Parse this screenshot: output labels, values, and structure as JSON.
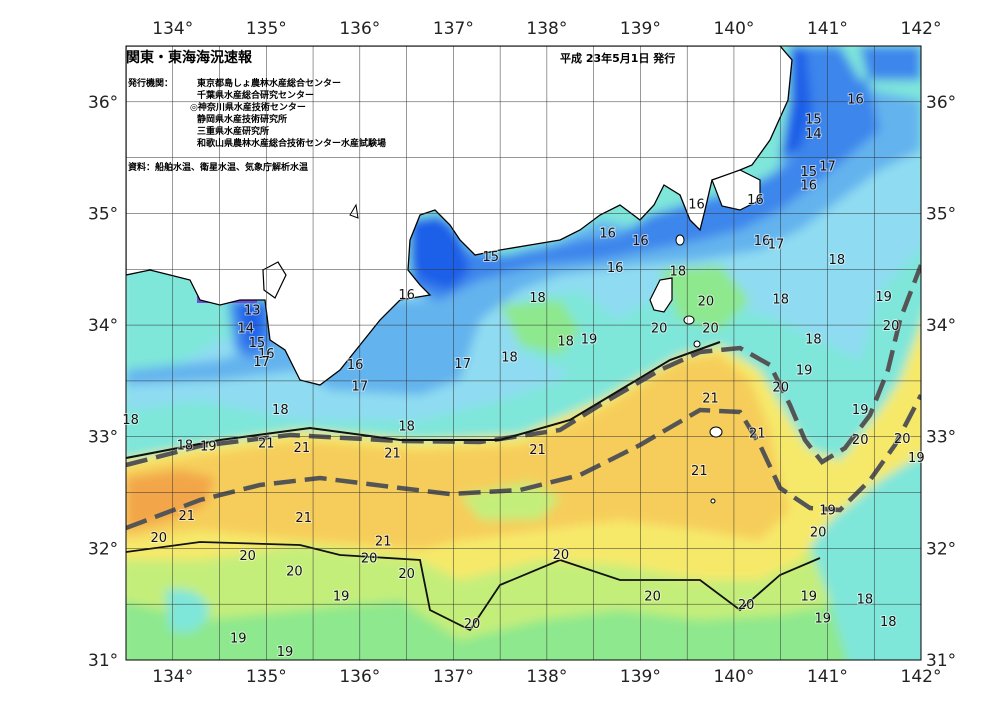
{
  "header": {
    "title": "関東・東海海況速報",
    "date": "平成 23年5月1日 発行"
  },
  "info": {
    "publisher_label": "発行機関：",
    "publishers": [
      "東京都島しょ農林水産総合センター",
      "千葉県水産総合研究センター",
      "◎神奈川県水産技術センター",
      "静岡県水産技術研究所",
      "三重県水産研究所",
      "和歌山県農林水産総合技術センター水産試験場"
    ],
    "source": "資料：船舶水温、衛星水温、気象庁解析水温"
  },
  "axes": {
    "lon_labels": [
      "134°",
      "135°",
      "136°",
      "137°",
      "138°",
      "139°",
      "140°",
      "141°",
      "142°"
    ],
    "lat_labels": [
      "36°",
      "35°",
      "34°",
      "33°",
      "32°",
      "31°"
    ]
  },
  "isotherm_labels": [
    {
      "lon": 140.85,
      "lat": 35.85,
      "t": "15"
    },
    {
      "lon": 140.85,
      "lat": 35.72,
      "t": "14"
    },
    {
      "lon": 141.3,
      "lat": 36.03,
      "t": "16"
    },
    {
      "lon": 140.8,
      "lat": 35.38,
      "t": "15"
    },
    {
      "lon": 141.0,
      "lat": 35.43,
      "t": "17"
    },
    {
      "lon": 140.8,
      "lat": 35.26,
      "t": "16"
    },
    {
      "lon": 140.23,
      "lat": 35.13,
      "t": "16"
    },
    {
      "lon": 139.6,
      "lat": 35.09,
      "t": "16"
    },
    {
      "lon": 139.0,
      "lat": 34.76,
      "t": "16"
    },
    {
      "lon": 140.3,
      "lat": 34.76,
      "t": "16"
    },
    {
      "lon": 140.45,
      "lat": 34.73,
      "t": "17"
    },
    {
      "lon": 141.1,
      "lat": 34.59,
      "t": "18"
    },
    {
      "lon": 138.65,
      "lat": 34.83,
      "t": "16"
    },
    {
      "lon": 138.73,
      "lat": 34.52,
      "t": "16"
    },
    {
      "lon": 139.4,
      "lat": 34.49,
      "t": "18"
    },
    {
      "lon": 137.4,
      "lat": 34.62,
      "t": "15"
    },
    {
      "lon": 136.5,
      "lat": 34.28,
      "t": "16"
    },
    {
      "lon": 137.9,
      "lat": 34.25,
      "t": "18"
    },
    {
      "lon": 139.7,
      "lat": 34.22,
      "t": "20"
    },
    {
      "lon": 140.5,
      "lat": 34.24,
      "t": "18"
    },
    {
      "lon": 141.6,
      "lat": 34.26,
      "t": "19"
    },
    {
      "lon": 141.68,
      "lat": 34.0,
      "t": "20"
    },
    {
      "lon": 139.2,
      "lat": 33.98,
      "t": "20"
    },
    {
      "lon": 139.75,
      "lat": 33.98,
      "t": "20"
    },
    {
      "lon": 138.2,
      "lat": 33.86,
      "t": "18"
    },
    {
      "lon": 138.45,
      "lat": 33.88,
      "t": "19"
    },
    {
      "lon": 140.85,
      "lat": 33.88,
      "t": "18"
    },
    {
      "lon": 140.75,
      "lat": 33.6,
      "t": "19"
    },
    {
      "lon": 141.35,
      "lat": 33.25,
      "t": "19"
    },
    {
      "lon": 140.5,
      "lat": 33.45,
      "t": "20"
    },
    {
      "lon": 137.6,
      "lat": 33.72,
      "t": "18"
    },
    {
      "lon": 137.1,
      "lat": 33.66,
      "t": "17"
    },
    {
      "lon": 135.95,
      "lat": 33.65,
      "t": "16"
    },
    {
      "lon": 136.0,
      "lat": 33.46,
      "t": "17"
    },
    {
      "lon": 134.85,
      "lat": 34.14,
      "t": "13"
    },
    {
      "lon": 134.78,
      "lat": 33.98,
      "t": "14"
    },
    {
      "lon": 134.9,
      "lat": 33.85,
      "t": "15"
    },
    {
      "lon": 135.0,
      "lat": 33.75,
      "t": "16"
    },
    {
      "lon": 134.95,
      "lat": 33.68,
      "t": "17"
    },
    {
      "lon": 135.15,
      "lat": 33.25,
      "t": "18"
    },
    {
      "lon": 136.5,
      "lat": 33.1,
      "t": "18"
    },
    {
      "lon": 133.55,
      "lat": 33.16,
      "t": "18"
    },
    {
      "lon": 134.13,
      "lat": 32.93,
      "t": "18"
    },
    {
      "lon": 134.38,
      "lat": 32.92,
      "t": "19"
    },
    {
      "lon": 135.0,
      "lat": 32.95,
      "t": "21"
    },
    {
      "lon": 135.38,
      "lat": 32.91,
      "t": "21"
    },
    {
      "lon": 136.35,
      "lat": 32.86,
      "t": "21"
    },
    {
      "lon": 137.9,
      "lat": 32.89,
      "t": "21"
    },
    {
      "lon": 139.75,
      "lat": 33.35,
      "t": "21"
    },
    {
      "lon": 140.25,
      "lat": 33.04,
      "t": "21"
    },
    {
      "lon": 139.63,
      "lat": 32.7,
      "t": "21"
    },
    {
      "lon": 141.35,
      "lat": 32.98,
      "t": "20"
    },
    {
      "lon": 141.8,
      "lat": 32.99,
      "t": "20"
    },
    {
      "lon": 141.95,
      "lat": 32.82,
      "t": "19"
    },
    {
      "lon": 134.15,
      "lat": 32.3,
      "t": "21"
    },
    {
      "lon": 135.4,
      "lat": 32.28,
      "t": "21"
    },
    {
      "lon": 136.25,
      "lat": 32.07,
      "t": "21"
    },
    {
      "lon": 141.0,
      "lat": 32.35,
      "t": "19"
    },
    {
      "lon": 140.9,
      "lat": 32.15,
      "t": "20"
    },
    {
      "lon": 133.85,
      "lat": 32.1,
      "t": "20"
    },
    {
      "lon": 134.8,
      "lat": 31.94,
      "t": "20"
    },
    {
      "lon": 135.3,
      "lat": 31.8,
      "t": "20"
    },
    {
      "lon": 136.1,
      "lat": 31.92,
      "t": "20"
    },
    {
      "lon": 136.5,
      "lat": 31.78,
      "t": "20"
    },
    {
      "lon": 138.15,
      "lat": 31.95,
      "t": "20"
    },
    {
      "lon": 135.8,
      "lat": 31.58,
      "t": "19"
    },
    {
      "lon": 139.13,
      "lat": 31.58,
      "t": "20"
    },
    {
      "lon": 140.13,
      "lat": 31.5,
      "t": "20"
    },
    {
      "lon": 140.8,
      "lat": 31.58,
      "t": "19"
    },
    {
      "lon": 141.4,
      "lat": 31.55,
      "t": "18"
    },
    {
      "lon": 140.95,
      "lat": 31.38,
      "t": "19"
    },
    {
      "lon": 141.65,
      "lat": 31.35,
      "t": "18"
    },
    {
      "lon": 137.2,
      "lat": 31.33,
      "t": "20"
    },
    {
      "lon": 134.7,
      "lat": 31.2,
      "t": "19"
    },
    {
      "lon": 135.2,
      "lat": 31.08,
      "t": "19"
    }
  ],
  "colors": {
    "c13": "#6a4fd1",
    "c14": "#1f5fe8",
    "c15": "#3c86ec",
    "c16": "#63b3ee",
    "c17": "#8fdcf2",
    "c18": "#7fe6da",
    "c19": "#8ee88d",
    "c20": "#c4ee7a",
    "c205": "#f6e96a",
    "c21": "#f6cd5a",
    "c215": "#f2a64a",
    "land": "#ffffff",
    "kuroshio": "#555555"
  }
}
